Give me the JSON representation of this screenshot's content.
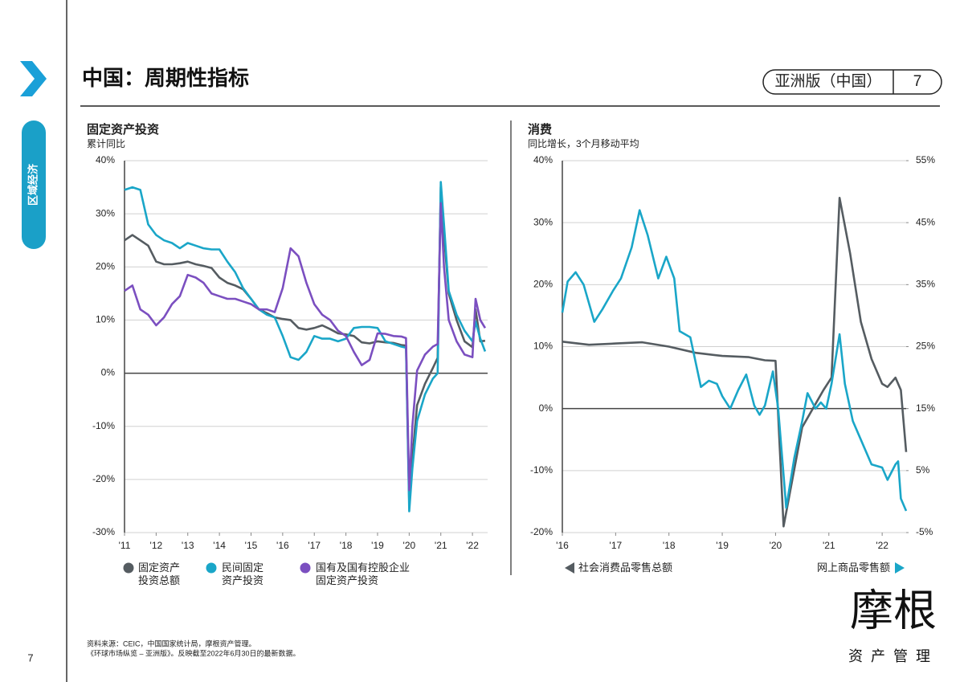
{
  "header": {
    "title": "中国：周期性指标",
    "edition": "亚洲版（中国）",
    "page": "7"
  },
  "sidebar": {
    "label": "区域经济"
  },
  "footer": {
    "source": [
      "资料来源：CEIC，中国国家统计局，摩根资产管理。",
      "《环球市场纵览 – 亚洲版》。反映截至2022年6月30日的最新数据。"
    ],
    "page_number": "7"
  },
  "logo": {
    "name": "摩根",
    "tagline": "资产管理"
  },
  "chart_data": [
    {
      "type": "line",
      "title": "固定资产投资",
      "subtitle": "累计同比",
      "x": [
        2011,
        2011.25,
        2011.5,
        2011.75,
        2012,
        2012.25,
        2012.5,
        2012.75,
        2013,
        2013.25,
        2013.5,
        2013.75,
        2014,
        2014.25,
        2014.5,
        2014.75,
        2015,
        2015.25,
        2015.5,
        2015.75,
        2016,
        2016.25,
        2016.5,
        2016.75,
        2017,
        2017.25,
        2017.5,
        2017.75,
        2018,
        2018.25,
        2018.5,
        2018.75,
        2019,
        2019.25,
        2019.5,
        2019.75,
        2019.9,
        2020,
        2020.1,
        2020.25,
        2020.5,
        2020.75,
        2020.9,
        2021,
        2021.1,
        2021.25,
        2021.5,
        2021.75,
        2022,
        2022.1,
        2022.25,
        2022.4
      ],
      "series": [
        {
          "name": "固定资产\n投资总额",
          "color": "#555c61",
          "values": [
            25,
            26,
            25,
            24,
            21,
            20.5,
            20.5,
            20.7,
            21,
            20.5,
            20.2,
            19.8,
            18,
            17,
            16.5,
            15.8,
            14,
            12,
            11.3,
            10.5,
            10.2,
            10,
            8.5,
            8.2,
            8.5,
            9,
            8.3,
            7.5,
            7.3,
            7,
            5.8,
            5.6,
            6,
            5.8,
            5.7,
            5.3,
            5.2,
            -24.5,
            -16,
            -6,
            -2,
            1,
            2.9,
            35,
            26,
            15,
            10,
            6,
            4.9,
            12,
            6,
            6.1
          ]
        },
        {
          "name": "民间固定\n资产投资",
          "color": "#1aa6c8",
          "values": [
            34.5,
            35,
            34.5,
            28,
            26,
            25,
            24.5,
            23.5,
            24.5,
            24,
            23.5,
            23.3,
            23.3,
            21,
            19,
            16,
            14,
            12,
            11,
            10.5,
            7,
            3,
            2.5,
            4,
            7,
            6.5,
            6.5,
            6,
            6.5,
            8.5,
            8.7,
            8.7,
            8.5,
            6,
            5.5,
            5,
            4.8,
            -26,
            -18,
            -9,
            -4,
            -1,
            0,
            36,
            28,
            15.5,
            11,
            8,
            6,
            9.7,
            6.5,
            4.1
          ]
        },
        {
          "name": "国有及国有控股企业\n固定资产投资",
          "color": "#7b4fc0",
          "values": [
            15.5,
            16.5,
            12,
            11,
            9,
            10.5,
            13,
            14.5,
            18.5,
            18,
            17,
            15,
            14.5,
            14,
            14,
            13.5,
            13,
            12,
            12,
            11.5,
            16,
            23.5,
            22,
            17,
            13,
            11,
            10,
            8,
            7,
            4,
            1.5,
            2.5,
            7.5,
            7.4,
            7,
            6.9,
            6.6,
            -22,
            -10,
            0.5,
            3.5,
            5,
            5.5,
            32,
            20,
            10,
            6,
            3.5,
            3,
            14,
            10,
            8.5
          ]
        }
      ],
      "xlim": [
        2011,
        2022.48
      ],
      "xticks": [
        {
          "value": 2011,
          "label": "'11"
        },
        {
          "value": 2012,
          "label": "'12"
        },
        {
          "value": 2013,
          "label": "'13"
        },
        {
          "value": 2014,
          "label": "'14"
        },
        {
          "value": 2015,
          "label": "'15"
        },
        {
          "value": 2016,
          "label": "'16"
        },
        {
          "value": 2017,
          "label": "'17"
        },
        {
          "value": 2018,
          "label": "'18"
        },
        {
          "value": 2019,
          "label": "'19"
        },
        {
          "value": 2020,
          "label": "'20"
        },
        {
          "value": 2021,
          "label": "'21"
        },
        {
          "value": 2022,
          "label": "'22"
        }
      ],
      "ylim": [
        -30,
        40
      ],
      "yticks": [
        {
          "value": -30,
          "label": "-30%"
        },
        {
          "value": -20,
          "label": "-20%"
        },
        {
          "value": -10,
          "label": "-10%"
        },
        {
          "value": 0,
          "label": "0%"
        },
        {
          "value": 10,
          "label": "10%"
        },
        {
          "value": 20,
          "label": "20%"
        },
        {
          "value": 30,
          "label": "30%"
        },
        {
          "value": 40,
          "label": "40%"
        }
      ],
      "grid": true
    },
    {
      "type": "line",
      "title": "消费",
      "subtitle": "同比增长，3个月移动平均",
      "series": [
        {
          "name": "社会消费品零售总额",
          "color": "#555c61",
          "x": [
            2016,
            2016.5,
            2017,
            2017.5,
            2018,
            2018.5,
            2019,
            2019.5,
            2019.8,
            2020,
            2020.15,
            2020.5,
            2020.9,
            2021.05,
            2021.2,
            2021.4,
            2021.6,
            2021.8,
            2022,
            2022.1,
            2022.25,
            2022.35,
            2022.45
          ],
          "values": [
            10.8,
            10.3,
            10.5,
            10.7,
            10,
            9,
            8.5,
            8.3,
            7.8,
            7.7,
            -19,
            -3,
            3,
            5,
            34,
            25,
            14,
            8,
            4,
            3.5,
            5,
            3,
            -7
          ]
        },
        {
          "name": "网上商品零售额",
          "color": "#1aa6c8",
          "axis": "y2",
          "x": [
            2016,
            2016.1,
            2016.25,
            2016.4,
            2016.6,
            2016.75,
            2016.95,
            2017.1,
            2017.3,
            2017.45,
            2017.6,
            2017.8,
            2017.95,
            2018.1,
            2018.2,
            2018.4,
            2018.6,
            2018.75,
            2018.9,
            2019,
            2019.15,
            2019.3,
            2019.45,
            2019.6,
            2019.7,
            2019.8,
            2019.95,
            2020.05,
            2020.2,
            2020.35,
            2020.5,
            2020.6,
            2020.75,
            2020.85,
            2020.95,
            2021.05,
            2021.2,
            2021.3,
            2021.45,
            2021.6,
            2021.8,
            2022,
            2022.1,
            2022.25,
            2022.3,
            2022.35,
            2022.45
          ],
          "values": [
            30.5,
            35.5,
            37,
            35,
            29,
            31,
            34,
            36,
            41,
            47,
            43,
            36,
            39.5,
            36,
            27.5,
            26.5,
            18.5,
            19.5,
            19,
            17,
            15,
            18,
            20.5,
            15.5,
            14,
            15.5,
            21,
            15,
            -1,
            7,
            13,
            17.5,
            15,
            16,
            15,
            19,
            27,
            19,
            13,
            10,
            6,
            5.5,
            3.5,
            6,
            6.5,
            0.5,
            -1.5
          ]
        }
      ],
      "xlim": [
        2016,
        2022.45
      ],
      "xticks": [
        {
          "value": 2016,
          "label": "'16"
        },
        {
          "value": 2017,
          "label": "'17"
        },
        {
          "value": 2018,
          "label": "'18"
        },
        {
          "value": 2019,
          "label": "'19"
        },
        {
          "value": 2020,
          "label": "'20"
        },
        {
          "value": 2021,
          "label": "'21"
        },
        {
          "value": 2022,
          "label": "'22"
        }
      ],
      "ylim": [
        -20,
        40
      ],
      "yticks": [
        {
          "value": -20,
          "label": "-20%"
        },
        {
          "value": -10,
          "label": "-10%"
        },
        {
          "value": 0,
          "label": "0%"
        },
        {
          "value": 10,
          "label": "10%"
        },
        {
          "value": 20,
          "label": "20%"
        },
        {
          "value": 30,
          "label": "30%"
        },
        {
          "value": 40,
          "label": "40%"
        }
      ],
      "y2lim": [
        -5,
        55
      ],
      "y2ticks": [
        {
          "value": -5,
          "label": "-5%"
        },
        {
          "value": 5,
          "label": "5%"
        },
        {
          "value": 15,
          "label": "15%"
        },
        {
          "value": 25,
          "label": "25%"
        },
        {
          "value": 35,
          "label": "35%"
        },
        {
          "value": 45,
          "label": "45%"
        },
        {
          "value": 55,
          "label": "55%"
        }
      ],
      "grid": true
    }
  ]
}
